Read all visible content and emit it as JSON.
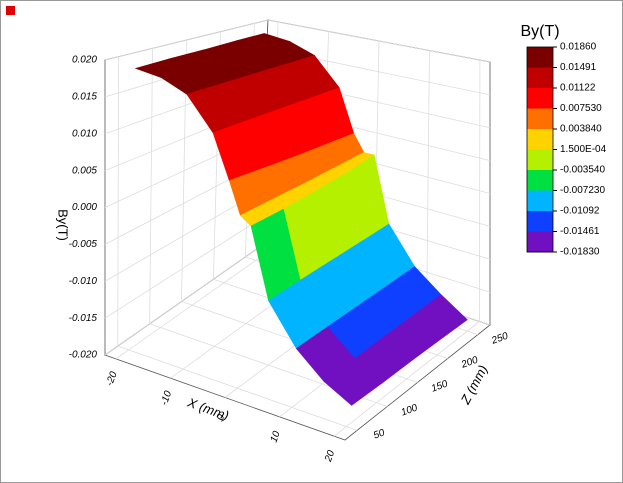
{
  "chart_data": {
    "type": "surface",
    "x_label": "X (mm)",
    "y_label": "By(T)",
    "z_label": "Z (mm)",
    "xlim": [
      -22,
      22
    ],
    "xticks": [
      -20,
      -10,
      0,
      10,
      20
    ],
    "zlim": [
      30,
      270
    ],
    "zticks": [
      50,
      100,
      150,
      200,
      250
    ],
    "ylim": [
      -0.02,
      0.02
    ],
    "yticks": [
      {
        "value": 0.02,
        "label": "0.020"
      },
      {
        "value": 0.015,
        "label": "0.015"
      },
      {
        "value": 0.01,
        "label": "0.010"
      },
      {
        "value": 0.005,
        "label": "0.005"
      },
      {
        "value": 0,
        "label": "0.000"
      },
      {
        "value": -0.005,
        "label": "-0.005"
      },
      {
        "value": -0.01,
        "label": "-0.010"
      },
      {
        "value": -0.015,
        "label": "-0.015"
      },
      {
        "value": -0.02,
        "label": "-0.020"
      }
    ],
    "grid": true,
    "surface": {
      "x": [
        -20,
        -15,
        -10,
        -5,
        -2,
        0,
        2,
        5,
        10,
        15,
        20
      ],
      "z": [
        60,
        110,
        160,
        210,
        250
      ],
      "values": [
        [
          0.0184,
          0.0178,
          0.0162,
          0.0118,
          0.006,
          0.0018,
          0.0008,
          -0.0082,
          -0.0132,
          -0.0162,
          -0.018
        ],
        [
          0.0185,
          0.0179,
          0.0163,
          0.0119,
          0.0058,
          0.002,
          0.001,
          -0.008,
          -0.0131,
          -0.0161,
          -0.0181
        ],
        [
          0.0185,
          0.018,
          0.0164,
          0.012,
          0.0056,
          0.0022,
          0.0014,
          -0.0078,
          -0.013,
          -0.016,
          -0.0181
        ],
        [
          0.0186,
          0.018,
          0.0165,
          0.0121,
          0.0055,
          0.0025,
          0.002,
          -0.0076,
          -0.0129,
          -0.0159,
          -0.0182
        ],
        [
          0.0186,
          0.0181,
          0.0166,
          0.0122,
          0.0054,
          0.0028,
          0.0028,
          -0.0074,
          -0.0128,
          -0.0158,
          -0.0183
        ]
      ]
    },
    "colorbar": {
      "title": "By(T)",
      "levels": [
        {
          "value": 0.0186,
          "label": "0.01860"
        },
        {
          "value": 0.01491,
          "label": "0.01491"
        },
        {
          "value": 0.01122,
          "label": "0.01122"
        },
        {
          "value": 0.00753,
          "label": "0.007530"
        },
        {
          "value": 0.00384,
          "label": "0.003840"
        },
        {
          "value": 0.00015,
          "label": "1.500E-04"
        },
        {
          "value": -0.00354,
          "label": "-0.003540"
        },
        {
          "value": -0.00723,
          "label": "-0.007230"
        },
        {
          "value": -0.01092,
          "label": "-0.01092"
        },
        {
          "value": -0.01461,
          "label": "-0.01461"
        },
        {
          "value": -0.0183,
          "label": "-0.01830"
        }
      ],
      "colors": [
        "#7a0000",
        "#c00000",
        "#ff0000",
        "#ff7000",
        "#ffd200",
        "#b4f000",
        "#00e040",
        "#00b4ff",
        "#1040ff",
        "#7010c0"
      ]
    }
  }
}
